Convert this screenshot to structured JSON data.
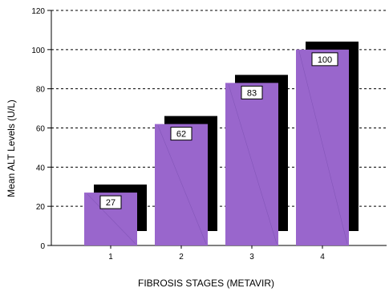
{
  "chart_data": {
    "type": "bar",
    "categories": [
      "1",
      "2",
      "3",
      "4"
    ],
    "values": [
      27,
      62,
      83,
      100
    ],
    "data_labels": [
      "27",
      "62",
      "83",
      "100"
    ],
    "xlabel": "FIBROSIS STAGES (METAVIR)",
    "ylabel": "Mean ALT Levels (U/L)",
    "ylim": [
      0,
      120
    ],
    "yticks": [
      0,
      20,
      40,
      60,
      80,
      100,
      120
    ],
    "grid": true,
    "bar_style": "3d-shadow",
    "colors": {
      "bar": "#9966CC",
      "shadow": "#000000",
      "grid": "#000000",
      "label_box": "#FFFFFF"
    }
  }
}
